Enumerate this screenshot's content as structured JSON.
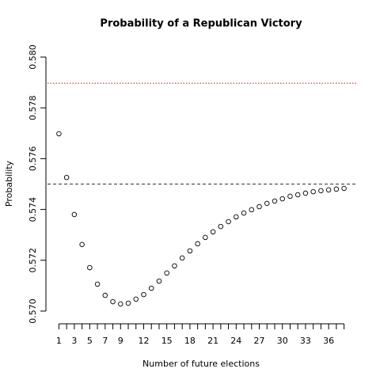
{
  "chart_data": {
    "type": "scatter",
    "title": "Probability of a Republican Victory",
    "x_label": "Number of future elections",
    "y_label": "Probability",
    "x": [
      1,
      2,
      3,
      4,
      5,
      6,
      7,
      8,
      9,
      10,
      11,
      12,
      13,
      14,
      15,
      16,
      17,
      18,
      19,
      20,
      21,
      22,
      23,
      24,
      25,
      26,
      27,
      28,
      29,
      30,
      31,
      32,
      33,
      34,
      35,
      36,
      37,
      38
    ],
    "values": [
      0.57698,
      0.57526,
      0.5738,
      0.57262,
      0.57171,
      0.57106,
      0.57062,
      0.57037,
      0.57028,
      0.57031,
      0.57047,
      0.57065,
      0.5709,
      0.57118,
      0.5715,
      0.57178,
      0.57209,
      0.57237,
      0.57265,
      0.5729,
      0.57312,
      0.57333,
      0.57352,
      0.57371,
      0.57386,
      0.57399,
      0.57411,
      0.57424,
      0.57433,
      0.57442,
      0.57452,
      0.57458,
      0.57464,
      0.5747,
      0.57474,
      0.57477,
      0.5748,
      0.57483
    ],
    "color": "#000000",
    "hlines": [
      {
        "value": 0.57897,
        "color": "#ff0000",
        "style": "dotted"
      },
      {
        "value": 0.575,
        "color": "#333333",
        "style": "dashed"
      }
    ],
    "xlim": [
      -0.48,
      39.48
    ],
    "ylim": [
      0.5695,
      0.5805
    ],
    "xticks": [
      1,
      {
        "value": 2,
        "label": null
      },
      3,
      {
        "value": 4,
        "label": null
      },
      5,
      {
        "value": 6,
        "label": null
      },
      7,
      {
        "value": 8,
        "label": null
      },
      9,
      {
        "value": 10,
        "label": null
      },
      {
        "value": 11,
        "label": null
      },
      12,
      {
        "value": 13,
        "label": null
      },
      {
        "value": 14,
        "label": null
      },
      15,
      {
        "value": 16,
        "label": null
      },
      {
        "value": 17,
        "label": null
      },
      18,
      {
        "value": 19,
        "label": null
      },
      {
        "value": 20,
        "label": null
      },
      21,
      {
        "value": 22,
        "label": null
      },
      {
        "value": 23,
        "label": null
      },
      24,
      {
        "value": 25,
        "label": null
      },
      {
        "value": 26,
        "label": null
      },
      27,
      {
        "value": 28,
        "label": null
      },
      {
        "value": 29,
        "label": null
      },
      30,
      {
        "value": 31,
        "label": null
      },
      {
        "value": 32,
        "label": null
      },
      33,
      {
        "value": 34,
        "label": null
      },
      {
        "value": 35,
        "label": null
      },
      36,
      {
        "value": 37,
        "label": null
      },
      {
        "value": 38,
        "label": null
      }
    ],
    "yticks": [
      {
        "value": 0.57,
        "label": "0.570"
      },
      {
        "value": 0.572,
        "label": "0.572"
      },
      {
        "value": 0.574,
        "label": "0.574"
      },
      {
        "value": 0.576,
        "label": "0.576"
      },
      {
        "value": 0.578,
        "label": "0.578"
      },
      {
        "value": 0.58,
        "label": "0.580"
      }
    ]
  }
}
